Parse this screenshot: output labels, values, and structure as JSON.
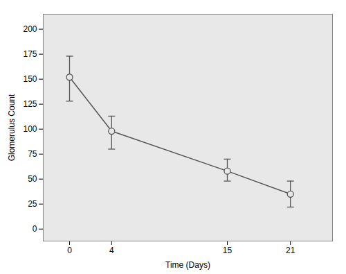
{
  "chart_data": {
    "type": "line",
    "xlabel": "Time (Days)",
    "ylabel": "Glomerulus Count",
    "x": [
      0,
      4,
      15,
      21
    ],
    "values": [
      152,
      98,
      58,
      35
    ],
    "error_upper": [
      21,
      15,
      12,
      13
    ],
    "error_lower": [
      24,
      18,
      10,
      13
    ],
    "color": "#555555",
    "marker": "circle",
    "xlim": [
      -2.5,
      25
    ],
    "xticks": [
      0,
      4,
      15,
      21
    ],
    "ylim": [
      -12,
      215
    ],
    "yticks": [
      0,
      25,
      50,
      75,
      100,
      125,
      150,
      175,
      200
    ],
    "grid": false
  }
}
